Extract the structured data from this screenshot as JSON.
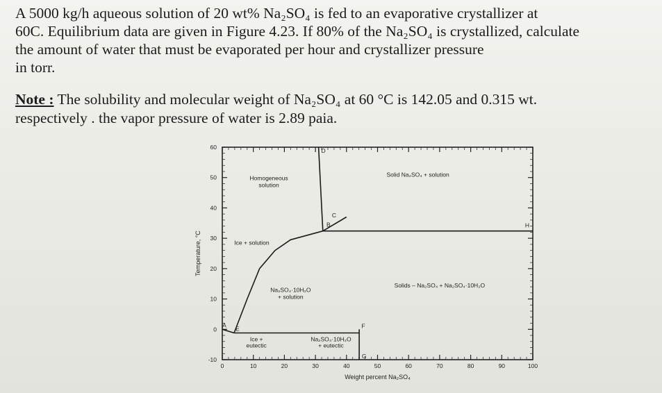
{
  "problem": {
    "line1": "A 5000 kg/h aqueous solution of 20 wt% Na₂SO₄ is fed to an evaporative crystallizer at",
    "line2": "60C. Equilibrium data are given in Figure 4.23. If 80% of the Na₂SO₄ is crystallized, calculate",
    "line3": "the amount of water that must be evaporated per hour and crystallizer pressure",
    "line4": "in torr."
  },
  "note": {
    "label": "Note :",
    "line1": "The solubility and molecular weight of Na₂SO₄ at 60 °C is 142.05 and 0.315 wt.",
    "line2": "respectively . the vapor pressure of water is 2.89 paia."
  },
  "chart_data": {
    "type": "phase-diagram",
    "xlabel": "Weight percent Na₂SO₄",
    "ylabel": "Temperature, °C",
    "xlim": [
      0,
      100
    ],
    "ylim": [
      -10,
      60
    ],
    "x_ticks": [
      "0",
      "10",
      "20",
      "30",
      "40",
      "50",
      "60",
      "70",
      "80",
      "90",
      "100"
    ],
    "y_ticks": [
      "60",
      "50",
      "40",
      "30",
      "20",
      "10",
      "0",
      "-10"
    ],
    "regions": {
      "homogeneous": [
        "Homogeneous",
        "solution"
      ],
      "ice_solution": "Ice + solution",
      "solid_na2so4": "Solid Na₂SO₄ + solution",
      "hydrate_solution": [
        "Na₂SO₄·10H₂O",
        "+ solution"
      ],
      "solids": "Solids – Na₂SO₄ + Na₂SO₄·10H₂O",
      "ice_eutectic": [
        "Ice +",
        "eutectic"
      ],
      "hydrate_eutectic": [
        "Na₂SO₄·10H₂O",
        "+ eutectic"
      ]
    },
    "points": {
      "A": {
        "label": "A",
        "x": 0,
        "y": 0
      },
      "B": {
        "label": "B",
        "x": 32.4,
        "y": 32.4
      },
      "C": {
        "label": "C",
        "x": 36,
        "y": 36
      },
      "D": {
        "label": "D",
        "x": 31,
        "y": 60
      },
      "E": {
        "label": "E",
        "x": 3.8,
        "y": -1.2
      },
      "F": {
        "label": "F",
        "x": 44.1,
        "y": 0
      },
      "G": {
        "label": "G",
        "x": 44.1,
        "y": -10
      },
      "H": {
        "label": "H",
        "x": 100,
        "y": 32.4
      }
    },
    "curves": {
      "ice_line": [
        [
          0,
          0
        ],
        [
          3.8,
          -1.2
        ]
      ],
      "hydrate_solubility": [
        [
          3.8,
          -1.2
        ],
        [
          8,
          10
        ],
        [
          12,
          20
        ],
        [
          17,
          26
        ],
        [
          22,
          29.5
        ],
        [
          32.4,
          32.4
        ]
      ],
      "anhydrous_solubility": [
        [
          32.4,
          32.4
        ],
        [
          40,
          37
        ]
      ],
      "homogeneous_boundary": [
        [
          32.4,
          32.4
        ],
        [
          31,
          60
        ]
      ],
      "transition_line": [
        [
          32.4,
          32.4
        ],
        [
          100,
          32.4
        ]
      ],
      "eutectic_line": [
        [
          3.8,
          -1.2
        ],
        [
          44.1,
          -1.2
        ]
      ],
      "hydrate_line": [
        [
          44.1,
          -10
        ],
        [
          44.1,
          0
        ]
      ]
    }
  }
}
